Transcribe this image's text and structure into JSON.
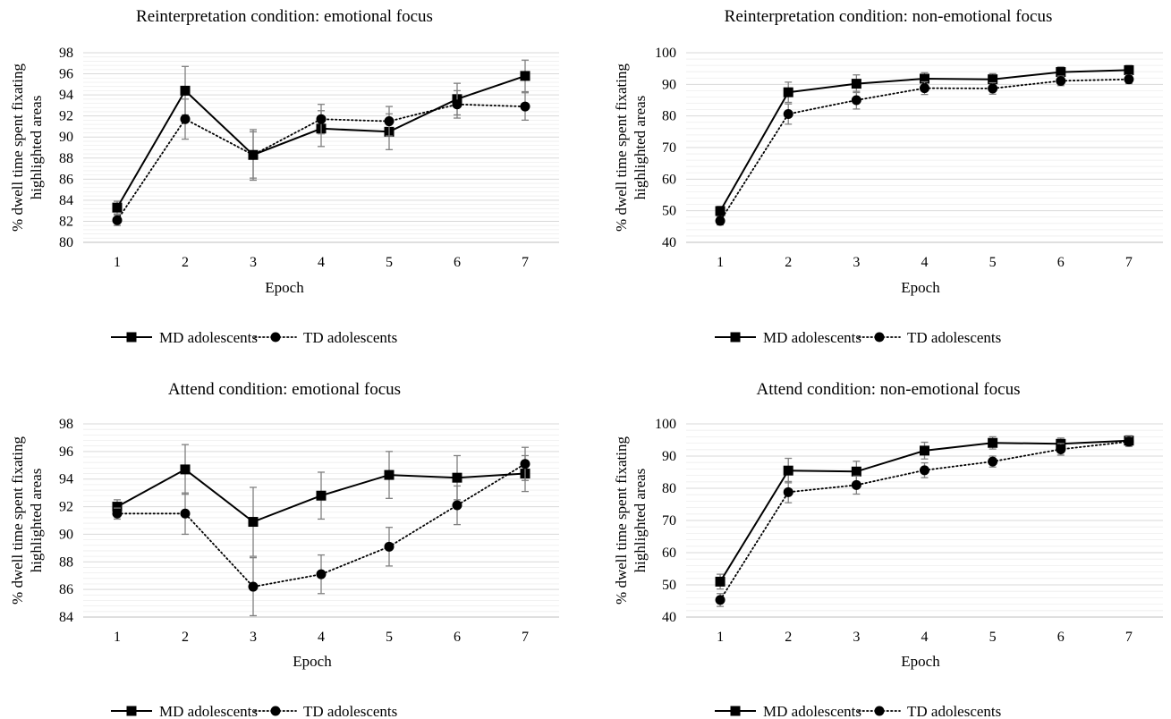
{
  "chart_data": [
    {
      "type": "line",
      "title": "Reinterpretation condition: emotional focus",
      "xlabel": "Epoch",
      "ylabel_line1": "% dwell time spent fixating",
      "ylabel_line2": "highlighted areas",
      "categories": [
        "1",
        "2",
        "3",
        "4",
        "5",
        "6",
        "7"
      ],
      "ylim": [
        80,
        98
      ],
      "yticks": [
        80,
        82,
        84,
        86,
        88,
        90,
        92,
        94,
        96,
        98
      ],
      "minor_grid_step": 0.4,
      "series": [
        {
          "name": "MD adolescents",
          "marker": "square",
          "line": "solid",
          "values": [
            83.3,
            94.4,
            88.3,
            90.8,
            90.5,
            93.6,
            95.8
          ],
          "error": [
            0.6,
            2.3,
            2.2,
            1.7,
            1.7,
            1.5,
            1.5
          ]
        },
        {
          "name": "TD adolescents",
          "marker": "circle",
          "line": "dotted",
          "values": [
            82.1,
            91.7,
            88.3,
            91.7,
            91.5,
            93.1,
            92.9
          ],
          "error": [
            0.5,
            1.9,
            2.4,
            1.4,
            1.4,
            1.3,
            1.3
          ]
        }
      ],
      "legend": "bottom"
    },
    {
      "type": "line",
      "title": "Reinterpretation condition: non-emotional focus",
      "xlabel": "Epoch",
      "ylabel_line1": "% dwell time spent fixating",
      "ylabel_line2": "highlighted areas",
      "categories": [
        "1",
        "2",
        "3",
        "4",
        "5",
        "6",
        "7"
      ],
      "ylim": [
        40,
        100
      ],
      "yticks": [
        40,
        50,
        60,
        70,
        80,
        90,
        100
      ],
      "minor_grid_step": 2,
      "series": [
        {
          "name": "MD adolescents",
          "marker": "square",
          "line": "solid",
          "values": [
            49.9,
            87.5,
            90.2,
            91.8,
            91.6,
            93.9,
            94.5
          ],
          "error": [
            1.5,
            3.2,
            2.8,
            1.9,
            1.8,
            1.6,
            1.5
          ]
        },
        {
          "name": "TD adolescents",
          "marker": "circle",
          "line": "dotted",
          "values": [
            46.8,
            80.6,
            85.0,
            88.8,
            88.7,
            91.1,
            91.6
          ],
          "error": [
            1.3,
            3.2,
            2.8,
            2.0,
            1.8,
            1.5,
            1.4
          ]
        }
      ],
      "legend": "bottom"
    },
    {
      "type": "line",
      "title": "Attend condition: emotional focus",
      "xlabel": "Epoch",
      "ylabel_line1": "% dwell time spent fixating",
      "ylabel_line2": "highlighted areas",
      "categories": [
        "1",
        "2",
        "3",
        "4",
        "5",
        "6",
        "7"
      ],
      "ylim": [
        84,
        98
      ],
      "yticks": [
        84,
        86,
        88,
        90,
        92,
        94,
        96,
        98
      ],
      "minor_grid_step": 0.4,
      "series": [
        {
          "name": "MD adolescents",
          "marker": "square",
          "line": "solid",
          "values": [
            92.0,
            94.7,
            90.9,
            92.8,
            94.3,
            94.1,
            94.4
          ],
          "error": [
            0.5,
            1.8,
            2.5,
            1.7,
            1.7,
            1.6,
            1.3
          ]
        },
        {
          "name": "TD adolescents",
          "marker": "circle",
          "line": "dotted",
          "values": [
            91.5,
            91.5,
            86.2,
            87.1,
            89.1,
            92.1,
            95.1
          ],
          "error": [
            0.4,
            1.5,
            2.1,
            1.4,
            1.4,
            1.4,
            1.2
          ]
        }
      ],
      "legend": "bottom"
    },
    {
      "type": "line",
      "title": "Attend condition: non-emotional focus",
      "xlabel": "Epoch",
      "ylabel_line1": "% dwell time spent fixating",
      "ylabel_line2": "highlighted areas",
      "categories": [
        "1",
        "2",
        "3",
        "4",
        "5",
        "6",
        "7"
      ],
      "ylim": [
        40,
        100
      ],
      "yticks": [
        40,
        50,
        60,
        70,
        80,
        90,
        100
      ],
      "minor_grid_step": 2,
      "series": [
        {
          "name": "MD adolescents",
          "marker": "square",
          "line": "solid",
          "values": [
            51.0,
            85.5,
            85.2,
            91.7,
            94.1,
            93.8,
            94.8
          ],
          "error": [
            2.3,
            3.8,
            3.2,
            2.6,
            1.9,
            1.8,
            1.5
          ]
        },
        {
          "name": "TD adolescents",
          "marker": "circle",
          "line": "dotted",
          "values": [
            45.3,
            78.8,
            81.0,
            85.6,
            88.3,
            92.1,
            94.5
          ],
          "error": [
            2.0,
            3.3,
            2.8,
            2.3,
            1.7,
            1.8,
            1.5
          ]
        }
      ],
      "legend": "bottom"
    }
  ],
  "colors": {
    "line": "#000000",
    "grid_major": "#d9d9d9",
    "grid_minor": "#eeeeee",
    "error_bar": "#808080"
  }
}
